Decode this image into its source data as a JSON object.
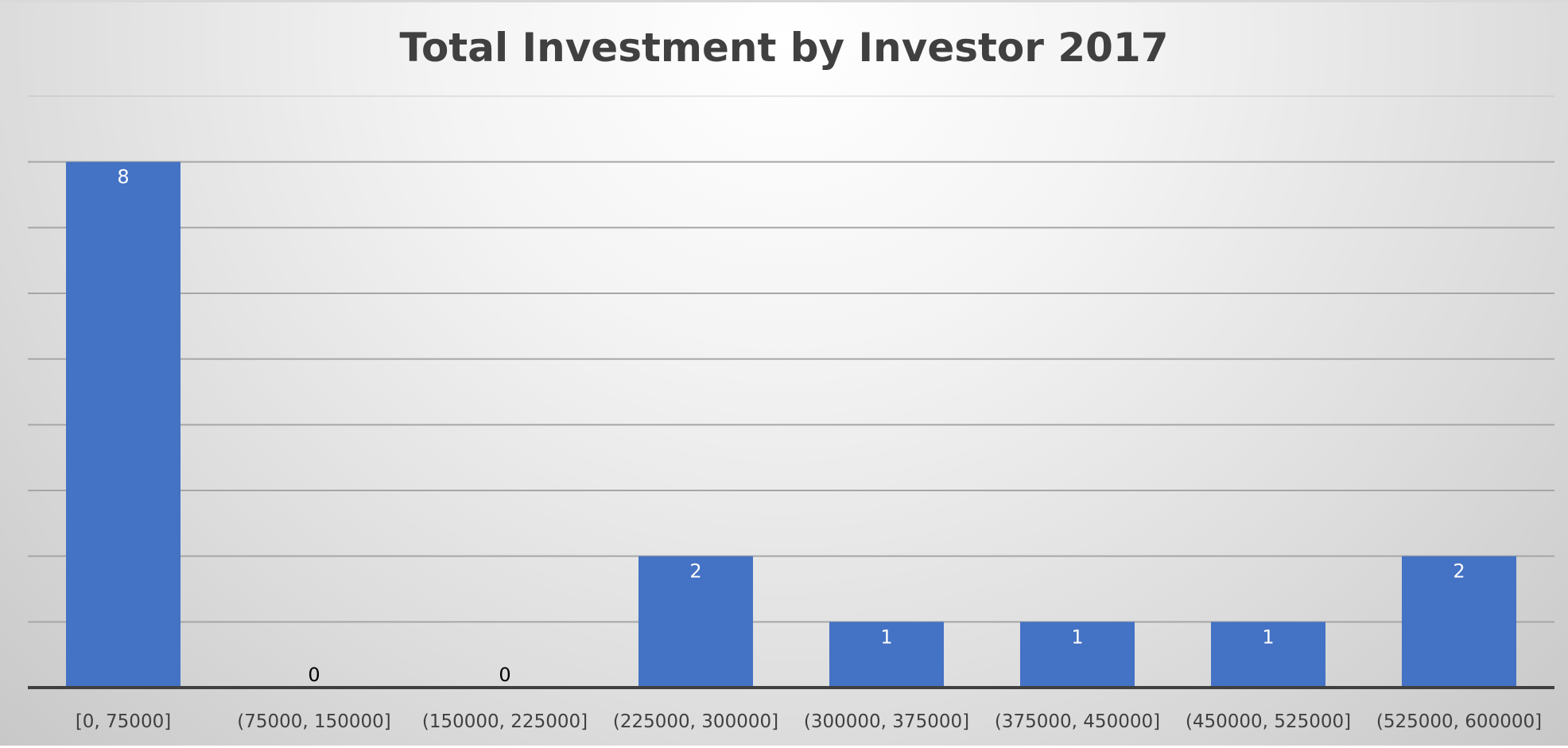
{
  "chart_data": {
    "type": "bar",
    "title": "Total Investment by Investor 2017",
    "xlabel": "",
    "ylabel": "",
    "categories": [
      "[0, 75000]",
      "(75000, 150000]",
      "(150000, 225000]",
      "(225000, 300000]",
      "(300000, 375000]",
      "(375000, 450000]",
      "(450000, 525000]",
      "(525000, 600000]"
    ],
    "values": [
      8,
      0,
      0,
      2,
      1,
      1,
      1,
      2
    ],
    "ylim": [
      0,
      9
    ],
    "grid": true,
    "legend": "none",
    "colors": {
      "bar": "#4472C4",
      "label_inside": "#FFFFFF",
      "label_outside": "#000000",
      "gridline": "#A6A6A6",
      "axis": "#404040"
    }
  }
}
